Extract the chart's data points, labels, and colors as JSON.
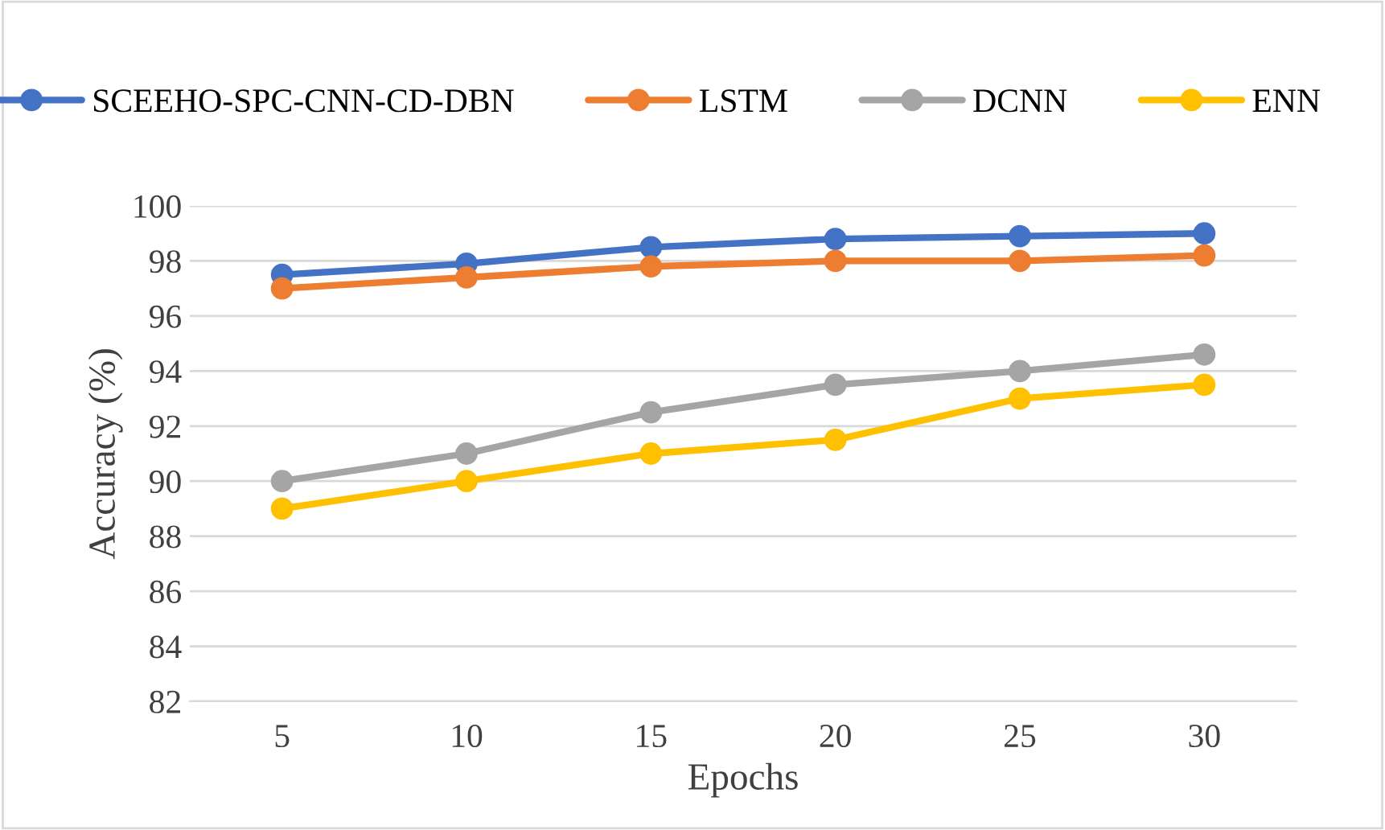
{
  "chart_data": {
    "type": "line",
    "xlabel": "Epochs",
    "ylabel": "Accuracy (%)",
    "categories": [
      "5",
      "10",
      "15",
      "20",
      "25",
      "30"
    ],
    "series": [
      {
        "name": "SCEEHO-SPC-CNN-CD-DBN",
        "color": "#4472c4",
        "values": [
          97.5,
          97.9,
          98.5,
          98.8,
          98.9,
          99.0
        ]
      },
      {
        "name": "LSTM",
        "color": "#ed7d31",
        "values": [
          97.0,
          97.4,
          97.8,
          98.0,
          98.0,
          98.2
        ]
      },
      {
        "name": "DCNN",
        "color": "#a5a5a5",
        "values": [
          90.0,
          91.0,
          92.5,
          93.5,
          94.0,
          94.6
        ]
      },
      {
        "name": "ENN",
        "color": "#ffc000",
        "values": [
          89.0,
          90.0,
          91.0,
          91.5,
          93.0,
          93.5
        ]
      }
    ],
    "ylim": [
      82,
      100
    ],
    "yticks": [
      82,
      84,
      86,
      88,
      90,
      92,
      94,
      96,
      98,
      100
    ],
    "grid": "y",
    "legend": "top",
    "marker": "circle",
    "line_style": "solid"
  }
}
